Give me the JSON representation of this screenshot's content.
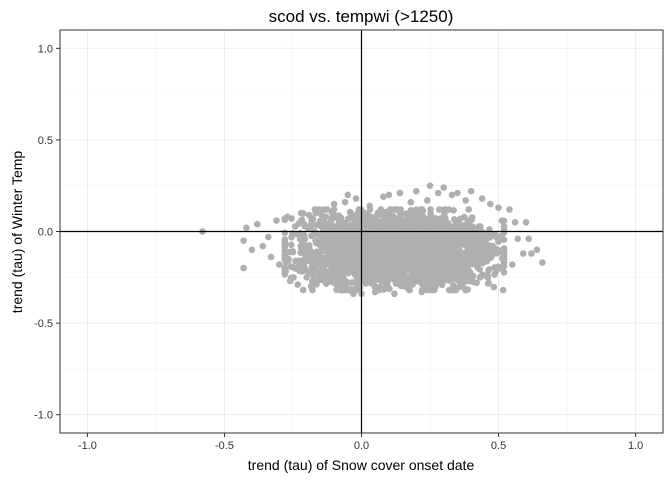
{
  "chart_data": {
    "type": "scatter",
    "title": "scod vs. tempwi (>1250)",
    "xlabel": "trend (tau) of Snow cover onset date",
    "ylabel": "trend (tau) of Winter Temp",
    "xlim": [
      -1.1,
      1.1
    ],
    "ylim": [
      -1.1,
      1.1
    ],
    "x_ticks": [
      -1.0,
      -0.5,
      0.0,
      0.5,
      1.0
    ],
    "x_tick_labels": [
      "-1.0",
      "-0.5",
      "0.0",
      "0.5",
      "1.0"
    ],
    "y_ticks": [
      -1.0,
      -0.5,
      0.0,
      0.5,
      1.0
    ],
    "y_tick_labels": [
      "-1.0",
      "-0.5",
      "0.0",
      "0.5",
      "1.0"
    ],
    "x_minor": [
      -0.75,
      -0.25,
      0.25,
      0.75
    ],
    "y_minor": [
      -0.75,
      -0.25,
      0.25,
      0.75
    ],
    "grid": true,
    "reference_lines": {
      "x": 0,
      "y": 0
    },
    "point_color": "#AFAFAF",
    "cloud": {
      "count": 2600,
      "x_range": [
        -0.28,
        0.52
      ],
      "y_range": [
        -0.32,
        0.12
      ],
      "x_center": 0.12,
      "y_center": -0.1
    },
    "points": [
      [
        -0.58,
        0.0
      ],
      [
        -0.43,
        -0.2
      ],
      [
        -0.43,
        -0.05
      ],
      [
        -0.42,
        0.02
      ],
      [
        -0.4,
        -0.1
      ],
      [
        -0.38,
        0.04
      ],
      [
        -0.36,
        -0.08
      ],
      [
        -0.34,
        -0.03
      ],
      [
        -0.33,
        -0.14
      ],
      [
        -0.31,
        0.06
      ],
      [
        -0.3,
        -0.18
      ],
      [
        -0.27,
        0.08
      ],
      [
        -0.26,
        -0.27
      ],
      [
        -0.22,
        0.1
      ],
      [
        -0.2,
        -0.25
      ],
      [
        -0.17,
        0.12
      ],
      [
        -0.15,
        -0.22
      ],
      [
        -0.13,
        0.08
      ],
      [
        -0.1,
        0.15
      ],
      [
        -0.08,
        -0.3
      ],
      [
        -0.06,
        0.16
      ],
      [
        -0.05,
        0.2
      ],
      [
        -0.03,
        -0.34
      ],
      [
        -0.02,
        0.18
      ],
      [
        0.0,
        -0.34
      ],
      [
        0.03,
        0.14
      ],
      [
        0.05,
        -0.33
      ],
      [
        0.08,
        0.19
      ],
      [
        0.1,
        0.2
      ],
      [
        0.12,
        -0.34
      ],
      [
        0.14,
        0.21
      ],
      [
        0.16,
        -0.3
      ],
      [
        0.18,
        0.16
      ],
      [
        0.2,
        0.22
      ],
      [
        0.22,
        -0.33
      ],
      [
        0.24,
        0.17
      ],
      [
        0.25,
        0.25
      ],
      [
        0.27,
        -0.3
      ],
      [
        0.28,
        0.21
      ],
      [
        0.3,
        0.24
      ],
      [
        0.32,
        -0.32
      ],
      [
        0.33,
        0.2
      ],
      [
        0.35,
        0.21
      ],
      [
        0.37,
        -0.28
      ],
      [
        0.38,
        0.17
      ],
      [
        0.4,
        0.22
      ],
      [
        0.42,
        -0.28
      ],
      [
        0.44,
        0.18
      ],
      [
        0.46,
        -0.24
      ],
      [
        0.47,
        0.15
      ],
      [
        0.49,
        -0.2
      ],
      [
        0.5,
        0.13
      ],
      [
        0.52,
        -0.17
      ],
      [
        0.54,
        0.12
      ],
      [
        0.55,
        -0.18
      ],
      [
        0.56,
        0.05
      ],
      [
        0.57,
        -0.04
      ],
      [
        0.59,
        -0.12
      ],
      [
        0.6,
        0.05
      ],
      [
        0.61,
        -0.04
      ],
      [
        0.62,
        -0.12
      ],
      [
        0.64,
        -0.1
      ],
      [
        0.66,
        -0.17
      ]
    ]
  }
}
